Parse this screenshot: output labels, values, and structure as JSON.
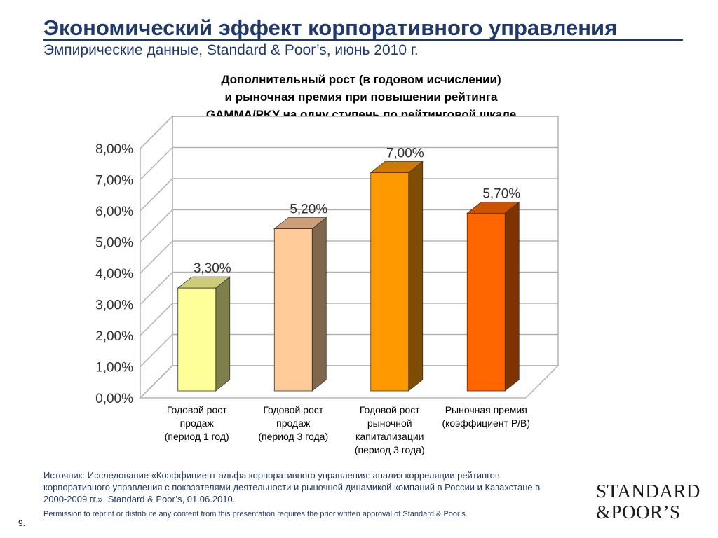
{
  "header": {
    "title": "Экономический эффект корпоративного управления",
    "subtitle": "Эмпирические данные, Standard & Poor’s, июнь 2010 г."
  },
  "chart_data": {
    "type": "bar",
    "title_lines": [
      "Дополнительный рост (в годовом исчислении)",
      "и рыночная премия при повышении рейтинга",
      "GAMMA/PKУ на одну ступень по рейтинговой шкале"
    ],
    "categories": [
      [
        "Годовой рост",
        "продаж",
        "(период 1 год)"
      ],
      [
        "Годовой рост",
        "продаж",
        "(период 3 года)"
      ],
      [
        "Годовой рост",
        "рыночной",
        "капитализации",
        "(период 3 года)"
      ],
      [
        "Рыночная премия",
        "(коэффициент P/B)"
      ]
    ],
    "values": [
      3.3,
      5.2,
      7.0,
      5.7
    ],
    "data_labels": [
      "3,30%",
      "5,20%",
      "7,00%",
      "5,70%"
    ],
    "ylim": [
      0,
      8
    ],
    "y_ticks": [
      "0,00%",
      "1,00%",
      "2,00%",
      "3,00%",
      "4,00%",
      "5,00%",
      "6,00%",
      "7,00%",
      "8,00%"
    ],
    "grid": true,
    "bar_colors": [
      "#FFFF99",
      "#FFCC99",
      "#FF9900",
      "#FF6600"
    ],
    "bar_side_colors": [
      "#7F7F4C",
      "#7F664C",
      "#7F4C00",
      "#7F3300"
    ],
    "bar_top_colors": [
      "#CCCC7A",
      "#CC9F7A",
      "#CC7A00",
      "#CC5200"
    ]
  },
  "footer": {
    "source": "Источник: Исследование «Коэффициент альфа корпоративного управления: анализ корреляции рейтингов корпоративного управления с показателями деятельности и рыночной динамикой компаний в России и Казахстане в 2000-2009 гг.», Standard & Poor’s, 01.06.2010.",
    "permission": "Permission to reprint or distribute any content from this presentation requires the prior written approval of Standard & Poor’s.",
    "page_number": "9.",
    "logo_line1": "STANDARD",
    "logo_line2": "&POOR’S"
  }
}
